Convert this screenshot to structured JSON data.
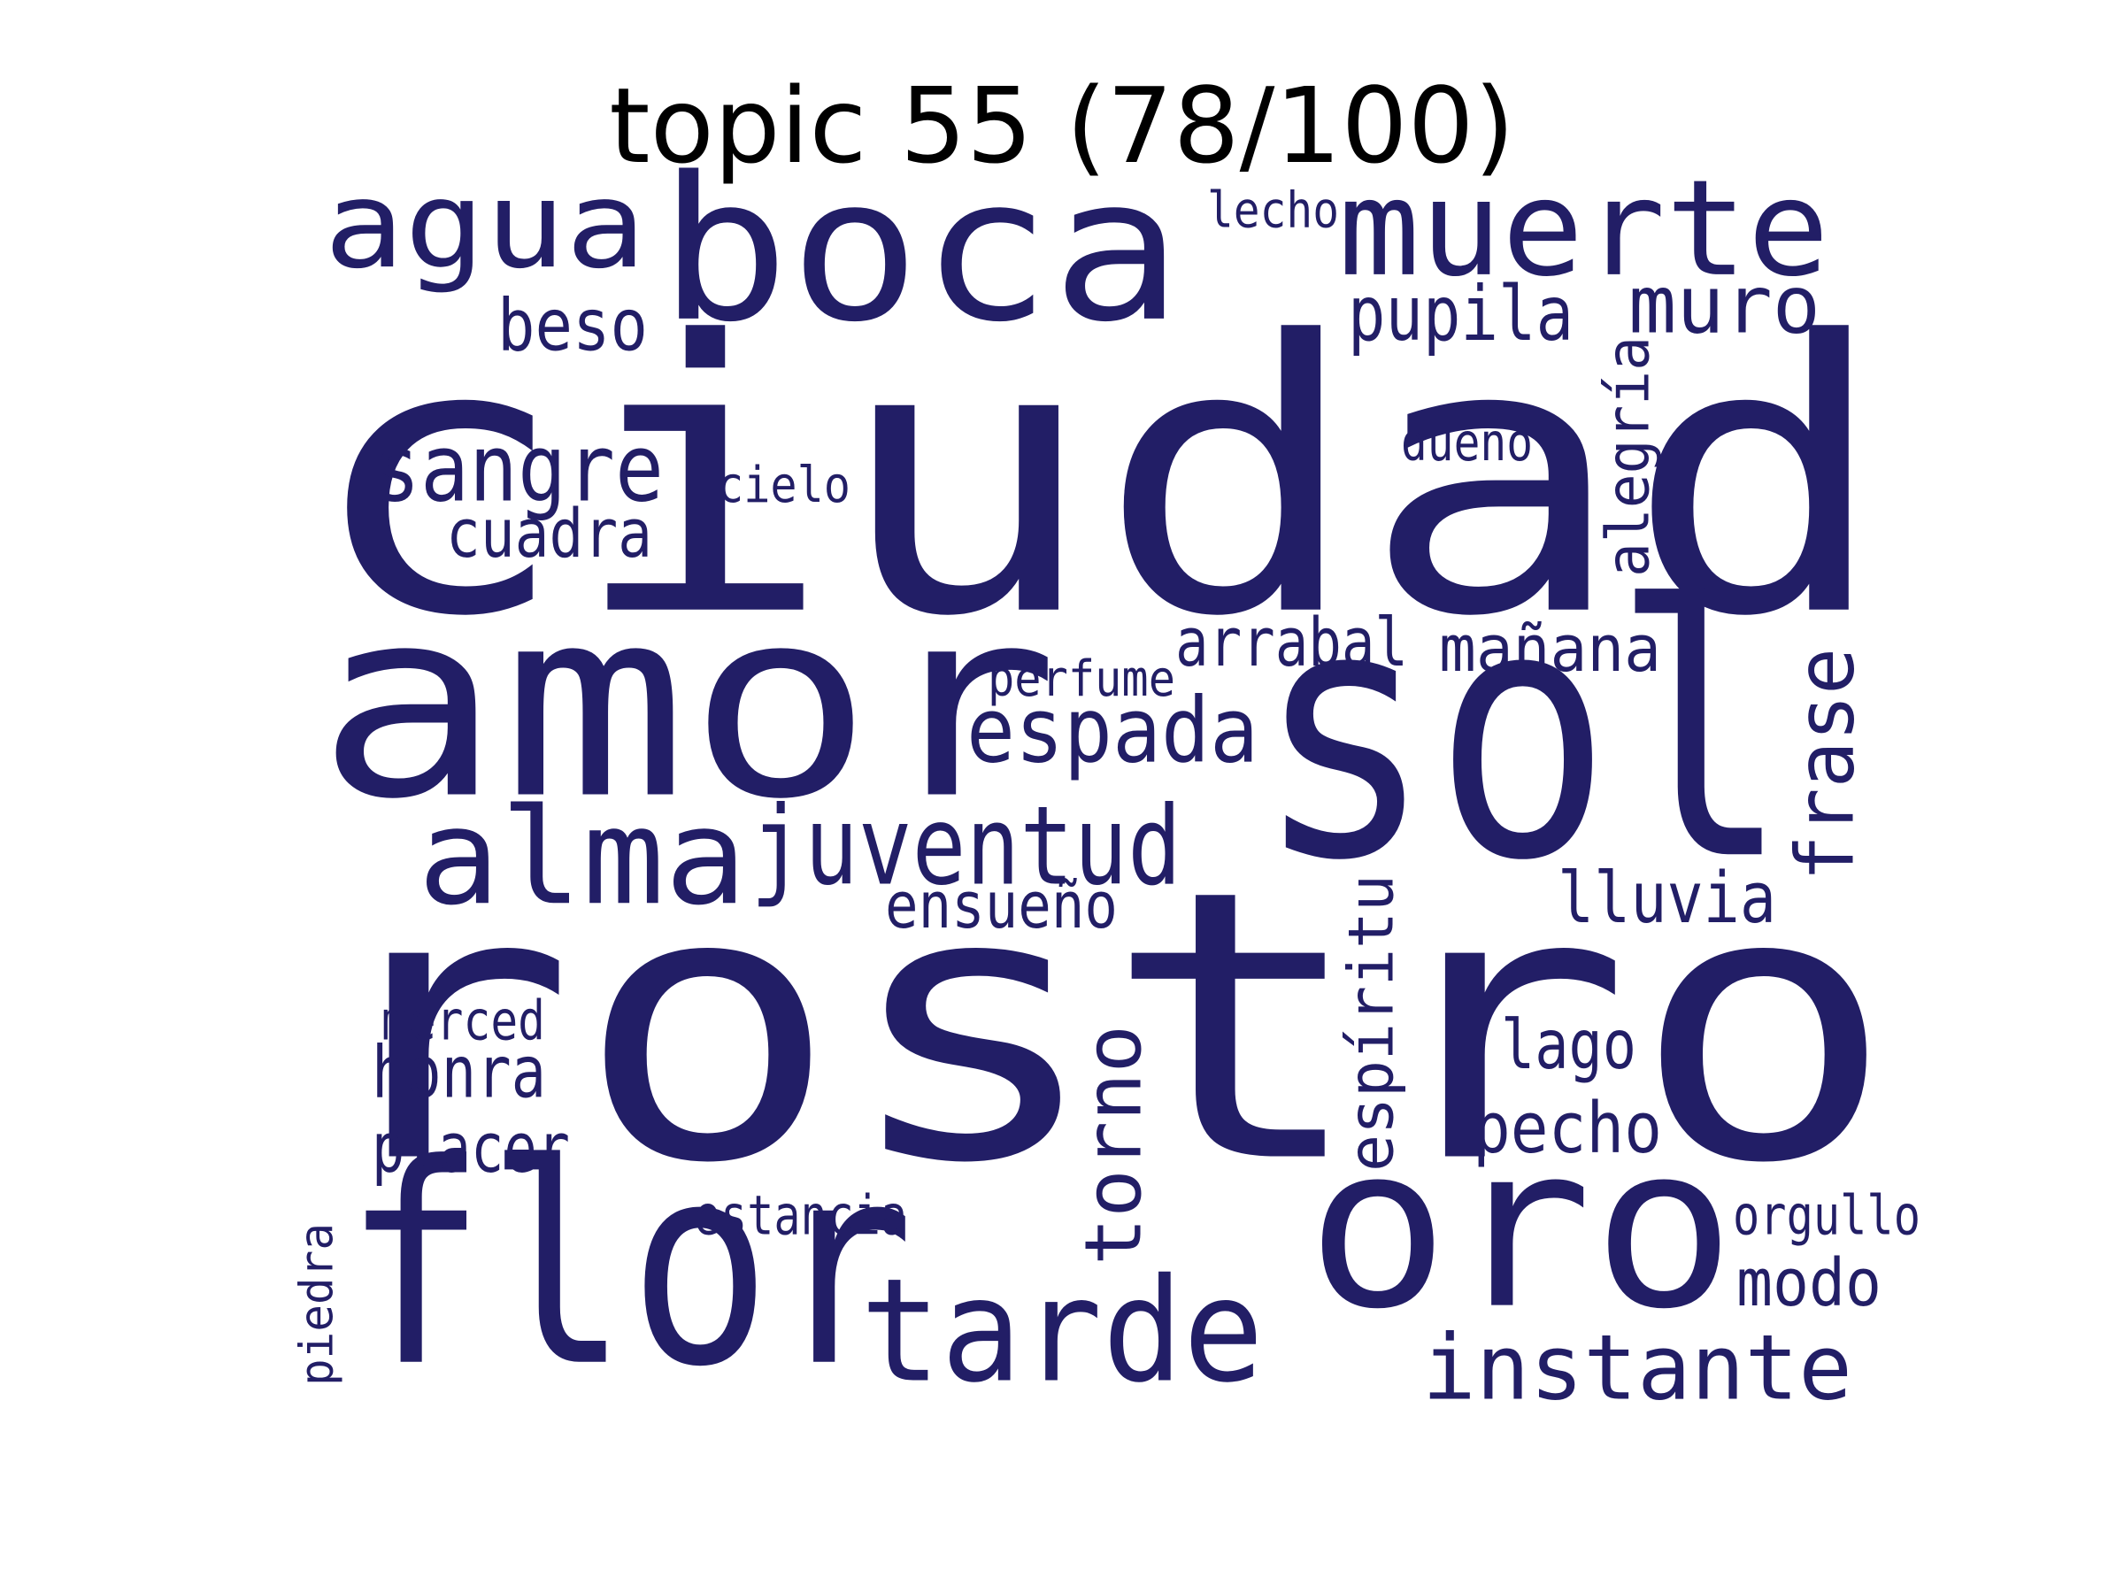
{
  "title": "topic 55 (78/100)",
  "colors": {
    "word": "#221e66",
    "title": "#000000",
    "background": "#ffffff"
  },
  "words": [
    {
      "text": "ciudad",
      "orientation": "horizontal"
    },
    {
      "text": "rostro",
      "orientation": "horizontal"
    },
    {
      "text": "sol",
      "orientation": "horizontal"
    },
    {
      "text": "amor",
      "orientation": "horizontal"
    },
    {
      "text": "flor",
      "orientation": "horizontal"
    },
    {
      "text": "oro",
      "orientation": "horizontal"
    },
    {
      "text": "boca",
      "orientation": "horizontal"
    },
    {
      "text": "muerte",
      "orientation": "horizontal"
    },
    {
      "text": "agua",
      "orientation": "horizontal"
    },
    {
      "text": "tarde",
      "orientation": "horizontal"
    },
    {
      "text": "alma",
      "orientation": "horizontal"
    },
    {
      "text": "juventud",
      "orientation": "horizontal"
    },
    {
      "text": "torno",
      "orientation": "vertical"
    },
    {
      "text": "instante",
      "orientation": "horizontal"
    },
    {
      "text": "espada",
      "orientation": "horizontal"
    },
    {
      "text": "sangre",
      "orientation": "horizontal"
    },
    {
      "text": "muro",
      "orientation": "horizontal"
    },
    {
      "text": "frase",
      "orientation": "vertical"
    },
    {
      "text": "espíritu",
      "orientation": "vertical"
    },
    {
      "text": "arrabal",
      "orientation": "horizontal"
    },
    {
      "text": "mañana",
      "orientation": "horizontal"
    },
    {
      "text": "pupila",
      "orientation": "horizontal"
    },
    {
      "text": "honra",
      "orientation": "horizontal"
    },
    {
      "text": "lluvia",
      "orientation": "horizontal"
    },
    {
      "text": "placer",
      "orientation": "horizontal"
    },
    {
      "text": "pecho",
      "orientation": "horizontal"
    },
    {
      "text": "beso",
      "orientation": "horizontal"
    },
    {
      "text": "cuadra",
      "orientation": "horizontal"
    },
    {
      "text": "modo",
      "orientation": "horizontal"
    },
    {
      "text": "alegría",
      "orientation": "vertical"
    },
    {
      "text": "lago",
      "orientation": "horizontal"
    },
    {
      "text": "ensueño",
      "orientation": "horizontal"
    },
    {
      "text": "estancia",
      "orientation": "horizontal"
    },
    {
      "text": "orgullo",
      "orientation": "horizontal"
    },
    {
      "text": "merced",
      "orientation": "horizontal"
    },
    {
      "text": "perfume",
      "orientation": "horizontal"
    },
    {
      "text": "cielo",
      "orientation": "horizontal"
    },
    {
      "text": "dueño",
      "orientation": "horizontal"
    },
    {
      "text": "lecho",
      "orientation": "horizontal"
    },
    {
      "text": "piedra",
      "orientation": "vertical"
    }
  ]
}
